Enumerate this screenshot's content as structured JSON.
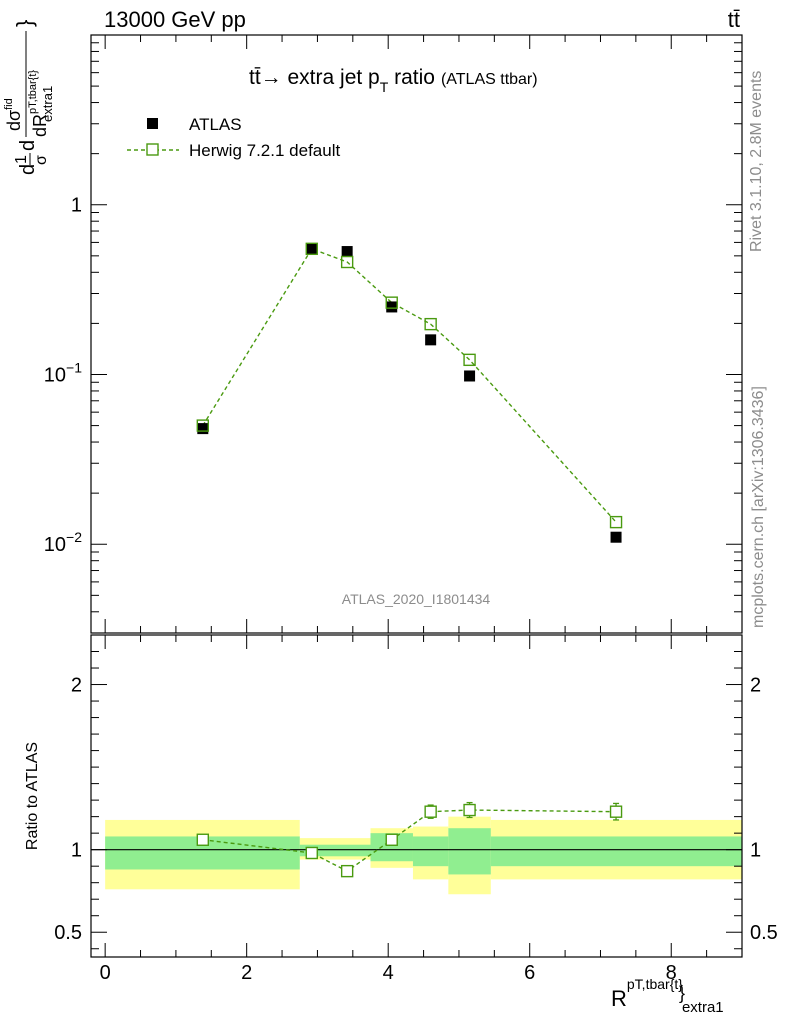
{
  "header": {
    "beam_label": "13000 GeV pp",
    "process_label": "tt̄"
  },
  "side_labels": {
    "rivet": "Rivet 3.1.10,  2.8M events",
    "mcplots": "mcplots.cern.ch [arXiv:1306.3436]"
  },
  "chart_data": {
    "type": "scatter",
    "title_main": "tt̄→ extra jet p",
    "title_sub": "T",
    "title_tail": " ratio",
    "title_small": "(ATLAS ttbar)",
    "watermark": "ATLAS_2020_I1801434",
    "xlabel": "R",
    "xlabel_sup": "pT,tbar{t}",
    "xlabel_close": "}",
    "xlabel_sub": "extra1",
    "ylabel_lead": "d",
    "ylabel_frac_top": "1",
    "ylabel_frac_bottom": "σ",
    "ylabel_d": "d",
    "ylabel_inner_top": "dσ",
    "ylabel_inner_top_sup": "fid",
    "ylabel_inner_bottom": "dR",
    "ylabel_inner_bottom_sup": "pT,tbar{t}",
    "ylabel_inner_bottom_sub": "extra1",
    "ylabel_close": "}",
    "xlim": [
      -0.2,
      9.0
    ],
    "ylim": [
      0.003,
      10
    ],
    "yscale": "log",
    "xticks": [
      0,
      2,
      4,
      6,
      8
    ],
    "xtick_labels": [
      "0",
      "2",
      "4",
      "6",
      "8"
    ],
    "yticks": [
      {
        "value": 1,
        "label": "1",
        "sup": ""
      },
      {
        "value": 0.1,
        "label": "10",
        "sup": "−1"
      },
      {
        "value": 0.01,
        "label": "10",
        "sup": "−2"
      }
    ],
    "legend_position": "top-left",
    "series": [
      {
        "name": "ATLAS",
        "style": "filled-square",
        "color": "#000000",
        "x": [
          1.38,
          2.92,
          3.42,
          4.05,
          4.6,
          5.15,
          7.22
        ],
        "y": [
          0.048,
          0.55,
          0.53,
          0.25,
          0.16,
          0.098,
          0.011
        ]
      },
      {
        "name": "Herwig 7.2.1 default",
        "style": "open-square-dashed",
        "color": "#4a9a10",
        "x": [
          1.38,
          2.92,
          3.42,
          4.05,
          4.6,
          5.15,
          7.22
        ],
        "y": [
          0.05,
          0.55,
          0.46,
          0.265,
          0.198,
          0.122,
          0.0135
        ]
      }
    ],
    "ratio": {
      "ylabel": "Ratio to ATLAS",
      "ylim": [
        0.35,
        2.3
      ],
      "yticks": [
        0.5,
        1,
        2
      ],
      "ytick_labels": [
        "0.5",
        "1",
        "2"
      ],
      "reference_line": 1,
      "bands": [
        {
          "x0": 0.0,
          "x1": 2.75,
          "inner": [
            0.88,
            1.08
          ],
          "outer": [
            0.76,
            1.18
          ]
        },
        {
          "x0": 2.75,
          "x1": 3.75,
          "inner": [
            0.96,
            1.03
          ],
          "outer": [
            0.94,
            1.07
          ]
        },
        {
          "x0": 3.75,
          "x1": 4.35,
          "inner": [
            0.93,
            1.1
          ],
          "outer": [
            0.89,
            1.13
          ]
        },
        {
          "x0": 4.35,
          "x1": 4.85,
          "inner": [
            0.9,
            1.08
          ],
          "outer": [
            0.82,
            1.14
          ]
        },
        {
          "x0": 4.85,
          "x1": 5.45,
          "inner": [
            0.85,
            1.13
          ],
          "outer": [
            0.73,
            1.2
          ]
        },
        {
          "x0": 5.45,
          "x1": 9.0,
          "inner": [
            0.9,
            1.08
          ],
          "outer": [
            0.82,
            1.18
          ]
        }
      ],
      "band_colors": {
        "inner": "#90ee90",
        "outer": "#ffff99"
      },
      "herwig_ratio": {
        "x": [
          1.38,
          2.92,
          3.42,
          4.05,
          4.6,
          5.15,
          7.22
        ],
        "y": [
          1.06,
          0.98,
          0.87,
          1.06,
          1.23,
          1.24,
          1.23
        ],
        "err": [
          0.02,
          0.015,
          0.015,
          0.02,
          0.04,
          0.045,
          0.05
        ]
      }
    }
  }
}
